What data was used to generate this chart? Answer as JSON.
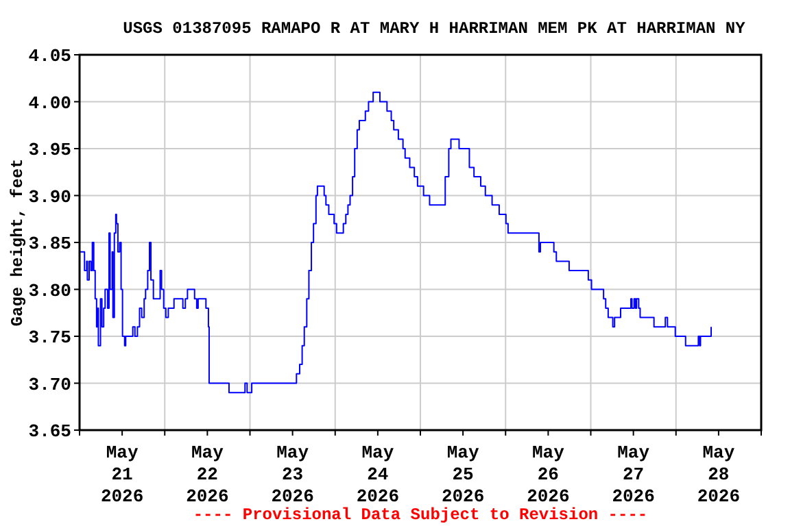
{
  "chart_data": {
    "type": "step",
    "title": "USGS 01387095 RAMAPO R AT MARY H HARRIMAN MEM PK AT HARRIMAN NY",
    "ylabel": "Gage height, feet",
    "annotations": [
      "---- Provisional Data Subject to Revision ----"
    ],
    "xlim": [
      "2026-05-21T00:00",
      "2026-05-29T00:00"
    ],
    "xticks": [
      {
        "value": "2026-05-21T00:00",
        "label": null
      },
      {
        "value": "2026-05-21T12:00",
        "label": "May\n21\n2026"
      },
      {
        "value": "2026-05-22T00:00",
        "label": null
      },
      {
        "value": "2026-05-22T12:00",
        "label": "May\n22\n2026"
      },
      {
        "value": "2026-05-23T00:00",
        "label": null
      },
      {
        "value": "2026-05-23T12:00",
        "label": "May\n23\n2026"
      },
      {
        "value": "2026-05-24T00:00",
        "label": null
      },
      {
        "value": "2026-05-24T12:00",
        "label": "May\n24\n2026"
      },
      {
        "value": "2026-05-25T00:00",
        "label": null
      },
      {
        "value": "2026-05-25T12:00",
        "label": "May\n25\n2026"
      },
      {
        "value": "2026-05-26T00:00",
        "label": null
      },
      {
        "value": "2026-05-26T12:00",
        "label": "May\n26\n2026"
      },
      {
        "value": "2026-05-27T00:00",
        "label": null
      },
      {
        "value": "2026-05-27T12:00",
        "label": "May\n27\n2026"
      },
      {
        "value": "2026-05-28T00:00",
        "label": null
      },
      {
        "value": "2026-05-28T12:00",
        "label": "May\n28\n2026"
      },
      {
        "value": "2026-05-29T00:00",
        "label": null
      }
    ],
    "ylim": [
      3.65,
      4.05
    ],
    "yticks": [
      {
        "value": 3.65,
        "label": "3.65"
      },
      {
        "value": 3.7,
        "label": "3.70"
      },
      {
        "value": 3.75,
        "label": "3.75"
      },
      {
        "value": 3.8,
        "label": "3.80"
      },
      {
        "value": 3.85,
        "label": "3.85"
      },
      {
        "value": 3.9,
        "label": "3.90"
      },
      {
        "value": 3.95,
        "label": "3.95"
      },
      {
        "value": 4.0,
        "label": "4.00"
      },
      {
        "value": 4.05,
        "label": "4.05"
      }
    ],
    "grid": true,
    "series": [
      {
        "color": "#0000ff",
        "x": [
          "2026-05-21T00:00",
          "2026-05-21T01:24",
          "2026-05-21T02:00",
          "2026-05-21T02:12",
          "2026-05-21T02:42",
          "2026-05-21T03:12",
          "2026-05-21T03:36",
          "2026-05-21T04:00",
          "2026-05-21T04:24",
          "2026-05-21T04:48",
          "2026-05-21T05:00",
          "2026-05-21T05:18",
          "2026-05-21T05:54",
          "2026-05-21T06:18",
          "2026-05-21T06:48",
          "2026-05-21T07:12",
          "2026-05-21T07:54",
          "2026-05-21T08:18",
          "2026-05-21T08:36",
          "2026-05-21T09:12",
          "2026-05-21T09:24",
          "2026-05-21T09:48",
          "2026-05-21T10:12",
          "2026-05-21T10:24",
          "2026-05-21T10:48",
          "2026-05-21T11:18",
          "2026-05-21T11:42",
          "2026-05-21T12:06",
          "2026-05-21T12:42",
          "2026-05-21T13:00",
          "2026-05-21T14:18",
          "2026-05-21T15:00",
          "2026-05-21T15:36",
          "2026-05-21T16:18",
          "2026-05-21T16:54",
          "2026-05-21T17:30",
          "2026-05-21T18:12",
          "2026-05-21T18:36",
          "2026-05-21T19:12",
          "2026-05-21T19:42",
          "2026-05-21T20:06",
          "2026-05-21T20:48",
          "2026-05-21T22:06",
          "2026-05-21T22:42",
          "2026-05-21T23:06",
          "2026-05-21T23:42",
          "2026-05-22T00:18",
          "2026-05-22T01:00",
          "2026-05-22T02:36",
          "2026-05-22T04:30",
          "2026-05-22T05:06",
          "2026-05-22T05:48",
          "2026-05-22T06:24",
          "2026-05-22T07:42",
          "2026-05-22T08:24",
          "2026-05-22T09:00",
          "2026-05-22T09:24",
          "2026-05-22T11:36",
          "2026-05-22T12:18",
          "2026-05-22T12:30",
          "2026-05-22T17:24",
          "2026-05-22T18:06",
          "2026-05-22T21:18",
          "2026-05-22T22:36",
          "2026-05-22T23:12",
          "2026-05-23T00:30",
          "2026-05-23T12:48",
          "2026-05-23T13:06",
          "2026-05-23T14:00",
          "2026-05-23T14:42",
          "2026-05-23T15:18",
          "2026-05-23T16:00",
          "2026-05-23T16:36",
          "2026-05-23T17:18",
          "2026-05-23T17:54",
          "2026-05-23T18:36",
          "2026-05-23T19:00",
          "2026-05-23T20:30",
          "2026-05-23T20:54",
          "2026-05-23T21:24",
          "2026-05-23T22:12",
          "2026-05-23T23:42",
          "2026-05-24T00:24",
          "2026-05-24T01:54",
          "2026-05-24T02:18",
          "2026-05-24T03:00",
          "2026-05-24T03:36",
          "2026-05-24T04:12",
          "2026-05-24T04:54",
          "2026-05-24T05:30",
          "2026-05-24T06:12",
          "2026-05-24T06:48",
          "2026-05-24T08:30",
          "2026-05-24T09:24",
          "2026-05-24T10:42",
          "2026-05-24T12:36",
          "2026-05-24T14:36",
          "2026-05-24T15:48",
          "2026-05-24T16:30",
          "2026-05-24T17:48",
          "2026-05-24T19:06",
          "2026-05-24T19:42",
          "2026-05-24T21:00",
          "2026-05-24T22:18",
          "2026-05-24T23:12",
          "2026-05-25T00:54",
          "2026-05-25T02:36",
          "2026-05-25T05:24",
          "2026-05-25T07:00",
          "2026-05-25T08:00",
          "2026-05-25T08:36",
          "2026-05-25T10:54",
          "2026-05-25T13:48",
          "2026-05-25T15:06",
          "2026-05-25T17:00",
          "2026-05-25T18:18",
          "2026-05-25T20:12",
          "2026-05-25T22:12",
          "2026-05-26T00:06",
          "2026-05-26T00:42",
          "2026-05-26T09:24",
          "2026-05-26T09:48",
          "2026-05-26T13:36",
          "2026-05-26T14:18",
          "2026-05-26T17:54",
          "2026-05-26T23:18",
          "2026-05-27T00:12",
          "2026-05-27T03:36",
          "2026-05-27T04:12",
          "2026-05-27T04:54",
          "2026-05-27T06:12",
          "2026-05-27T06:42",
          "2026-05-27T08:24",
          "2026-05-27T11:18",
          "2026-05-27T11:36",
          "2026-05-27T12:12",
          "2026-05-27T12:36",
          "2026-05-27T12:54",
          "2026-05-27T13:30",
          "2026-05-27T13:54",
          "2026-05-27T17:48",
          "2026-05-27T21:00",
          "2026-05-27T21:36",
          "2026-05-27T23:48",
          "2026-05-28T02:42",
          "2026-05-28T06:18",
          "2026-05-28T06:42",
          "2026-05-28T06:54",
          "2026-05-28T09:54"
        ],
        "values": [
          3.84,
          3.82,
          3.83,
          3.81,
          3.83,
          3.82,
          3.85,
          3.82,
          3.79,
          3.76,
          3.78,
          3.74,
          3.79,
          3.76,
          3.78,
          3.8,
          3.78,
          3.86,
          3.8,
          3.84,
          3.77,
          3.86,
          3.88,
          3.87,
          3.84,
          3.85,
          3.8,
          3.75,
          3.74,
          3.75,
          3.75,
          3.76,
          3.75,
          3.76,
          3.78,
          3.77,
          3.79,
          3.8,
          3.82,
          3.85,
          3.81,
          3.79,
          3.79,
          3.82,
          3.8,
          3.78,
          3.77,
          3.78,
          3.79,
          3.79,
          3.78,
          3.79,
          3.8,
          3.8,
          3.79,
          3.78,
          3.79,
          3.78,
          3.76,
          3.7,
          3.7,
          3.69,
          3.69,
          3.7,
          3.69,
          3.7,
          3.7,
          3.71,
          3.72,
          3.74,
          3.76,
          3.79,
          3.82,
          3.85,
          3.87,
          3.9,
          3.91,
          3.91,
          3.9,
          3.89,
          3.88,
          3.87,
          3.86,
          3.86,
          3.87,
          3.88,
          3.89,
          3.9,
          3.92,
          3.95,
          3.97,
          3.98,
          3.99,
          4.0,
          4.01,
          4.0,
          3.99,
          3.98,
          3.97,
          3.96,
          3.95,
          3.94,
          3.93,
          3.92,
          3.91,
          3.9,
          3.89,
          3.89,
          3.92,
          3.95,
          3.96,
          3.95,
          3.93,
          3.92,
          3.91,
          3.9,
          3.89,
          3.88,
          3.87,
          3.86,
          3.84,
          3.85,
          3.84,
          3.83,
          3.82,
          3.81,
          3.8,
          3.79,
          3.78,
          3.77,
          3.76,
          3.77,
          3.78,
          3.79,
          3.78,
          3.79,
          3.78,
          3.79,
          3.78,
          3.77,
          3.76,
          3.77,
          3.76,
          3.75,
          3.74,
          3.75,
          3.74,
          3.75,
          3.76
        ]
      }
    ]
  }
}
